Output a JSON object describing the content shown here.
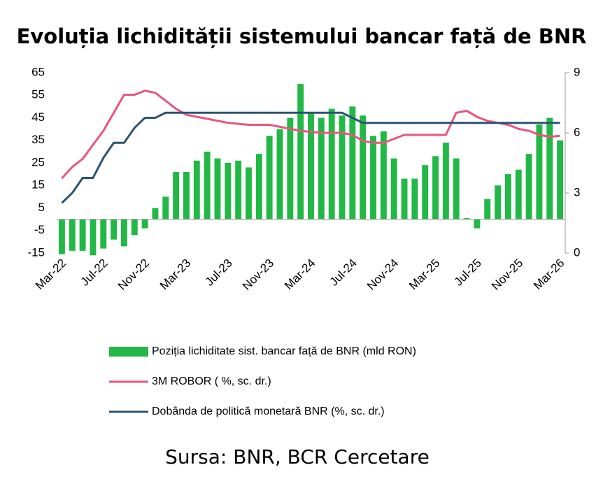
{
  "chart_data": {
    "type": "bar-line",
    "title": "Evoluția lichidității sistemului bancar față de BNR",
    "caption": "Sursa: BNR, BCR Cercetare",
    "categories": [
      "Mar-22",
      null,
      null,
      null,
      "Jul-22",
      null,
      null,
      null,
      "Nov-22",
      null,
      null,
      null,
      "Mar-23",
      null,
      null,
      null,
      "Jul-23",
      null,
      null,
      null,
      "Nov-23",
      null,
      null,
      null,
      "Mar-24",
      null,
      null,
      null,
      "Jul-24",
      null,
      null,
      null,
      "Nov-24",
      null,
      null,
      null,
      "Mar-25",
      null,
      null,
      null,
      "Jul-25",
      null,
      null,
      null,
      "Nov-25",
      null,
      null,
      null,
      "Mar-26"
    ],
    "ylim": [
      -15,
      65
    ],
    "yticks": [
      -15,
      -5,
      5,
      15,
      25,
      35,
      45,
      55,
      65
    ],
    "y2lim": [
      0,
      9
    ],
    "y2ticks": [
      0,
      3,
      6,
      9
    ],
    "series": [
      {
        "name": "Poziția lichiditate sist. bancar față de BNR (mld RON)",
        "type": "bar",
        "color": "#22b845",
        "values": [
          -15.5,
          -14,
          -14,
          -16,
          -13,
          -9,
          -12,
          -7,
          -4,
          5,
          10,
          21,
          21,
          26,
          30,
          27,
          25,
          26,
          23,
          29,
          37,
          40,
          45,
          60,
          47,
          45,
          49,
          46,
          50,
          46,
          37,
          39,
          27,
          18,
          18,
          24,
          28,
          34,
          27,
          0.5,
          -4,
          9,
          15,
          20,
          22,
          29,
          42,
          45,
          35
        ]
      },
      {
        "name": "3M ROBOR ( %, sc. dr.)",
        "type": "line",
        "axis": "y2",
        "color": "#e8557f",
        "values": [
          3.73,
          4.3,
          4.7,
          5.4,
          6.1,
          7.0,
          7.9,
          7.9,
          8.1,
          8.0,
          7.6,
          7.2,
          6.9,
          6.8,
          6.7,
          6.6,
          6.5,
          6.45,
          6.4,
          6.4,
          6.4,
          6.3,
          6.2,
          6.1,
          6.05,
          6.0,
          6.0,
          6.0,
          5.9,
          5.6,
          5.5,
          5.5,
          5.7,
          5.9,
          5.9,
          5.9,
          5.9,
          5.9,
          7.0,
          7.1,
          6.8,
          6.6,
          6.5,
          6.4,
          6.2,
          6.1,
          5.9,
          5.8,
          5.85
        ]
      },
      {
        "name": "Dobânda de politică monetară BNR (%, sc. dr.)",
        "type": "line",
        "axis": "y2",
        "color": "#2b5572",
        "values": [
          2.5,
          3.0,
          3.75,
          3.75,
          4.75,
          5.5,
          5.5,
          6.25,
          6.75,
          6.75,
          7.0,
          7.0,
          7.0,
          7.0,
          7.0,
          7.0,
          7.0,
          7.0,
          7.0,
          7.0,
          7.0,
          7.0,
          7.0,
          7.0,
          7.0,
          7.0,
          7.0,
          7.0,
          6.75,
          6.5,
          6.5,
          6.5,
          6.5,
          6.5,
          6.5,
          6.5,
          6.5,
          6.5,
          6.5,
          6.5,
          6.5,
          6.5,
          6.5,
          6.5,
          6.5,
          6.5,
          6.5,
          6.5,
          6.5
        ]
      }
    ]
  }
}
